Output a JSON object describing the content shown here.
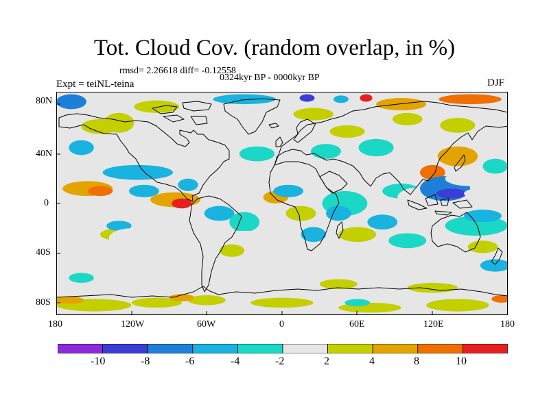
{
  "title": "Tot. Cloud Cov. (random overlap, in %)",
  "stats": "rmsd= 2.26618 diff= -0.12558",
  "period": "0324kyr BP - 0000kyr BP",
  "experiment": "Expt = teiNL-teina",
  "season": "DJF",
  "axes": {
    "lat_labels": [
      "80N",
      "40N",
      "0",
      "40S",
      "80S"
    ],
    "lon_labels": [
      "180",
      "120W",
      "60W",
      "0",
      "60E",
      "120E",
      "180"
    ]
  },
  "colorbar": {
    "colors": [
      "#8b2bdc",
      "#3c3cd6",
      "#1e7fd9",
      "#18b3df",
      "#1ad7c6",
      "#e6e6e6",
      "#c4cf00",
      "#e3a400",
      "#ef6f00",
      "#e62020"
    ],
    "labels": [
      "-10",
      "-8",
      "-6",
      "-4",
      "-2",
      "2",
      "4",
      "8",
      "10"
    ]
  },
  "map": {
    "background": "#e6e6e6",
    "coastline_color": "#000000",
    "anomaly_patches": [
      {
        "lon": -168,
        "lat": 82,
        "rx": 12,
        "ry": 6,
        "level": 2
      },
      {
        "lon": -30,
        "lat": 84,
        "rx": 25,
        "ry": 4,
        "level": 3
      },
      {
        "lon": 20,
        "lat": 85,
        "rx": 6,
        "ry": 3,
        "level": 1
      },
      {
        "lon": 47,
        "lat": 84,
        "rx": 6,
        "ry": 3,
        "level": 3
      },
      {
        "lon": 67,
        "lat": 85,
        "rx": 5,
        "ry": 3,
        "level": 9
      },
      {
        "lon": 95,
        "lat": 80,
        "rx": 20,
        "ry": 5,
        "level": 7
      },
      {
        "lon": 150,
        "lat": 84,
        "rx": 25,
        "ry": 4,
        "level": 8
      },
      {
        "lon": -145,
        "lat": 62,
        "rx": 15,
        "ry": 6,
        "level": 6
      },
      {
        "lon": -130,
        "lat": 65,
        "rx": 12,
        "ry": 8,
        "level": 6
      },
      {
        "lon": -100,
        "lat": 78,
        "rx": 18,
        "ry": 5,
        "level": 6
      },
      {
        "lon": 25,
        "lat": 72,
        "rx": 16,
        "ry": 5,
        "level": 6
      },
      {
        "lon": 52,
        "lat": 58,
        "rx": 14,
        "ry": 5,
        "level": 6
      },
      {
        "lon": 100,
        "lat": 68,
        "rx": 12,
        "ry": 5,
        "level": 6
      },
      {
        "lon": 140,
        "lat": 63,
        "rx": 14,
        "ry": 6,
        "level": 6
      },
      {
        "lon": -160,
        "lat": 45,
        "rx": 10,
        "ry": 6,
        "level": 3
      },
      {
        "lon": -115,
        "lat": 25,
        "rx": 28,
        "ry": 6,
        "level": 3
      },
      {
        "lon": -20,
        "lat": 40,
        "rx": 14,
        "ry": 6,
        "level": 4
      },
      {
        "lon": 35,
        "lat": 42,
        "rx": 12,
        "ry": 6,
        "level": 4
      },
      {
        "lon": 75,
        "lat": 45,
        "rx": 14,
        "ry": 7,
        "level": 4
      },
      {
        "lon": 140,
        "lat": 38,
        "rx": 16,
        "ry": 8,
        "level": 7
      },
      {
        "lon": 120,
        "lat": 25,
        "rx": 10,
        "ry": 6,
        "level": 8
      },
      {
        "lon": 170,
        "lat": 30,
        "rx": 10,
        "ry": 6,
        "level": 4
      },
      {
        "lon": -155,
        "lat": 12,
        "rx": 20,
        "ry": 6,
        "level": 7
      },
      {
        "lon": -145,
        "lat": 10,
        "rx": 10,
        "ry": 4,
        "level": 8
      },
      {
        "lon": -110,
        "lat": 10,
        "rx": 12,
        "ry": 5,
        "level": 3
      },
      {
        "lon": -85,
        "lat": 3,
        "rx": 20,
        "ry": 6,
        "level": 7
      },
      {
        "lon": -80,
        "lat": 0,
        "rx": 8,
        "ry": 4,
        "level": 9
      },
      {
        "lon": -75,
        "lat": 15,
        "rx": 8,
        "ry": 5,
        "level": 3
      },
      {
        "lon": -5,
        "lat": 5,
        "rx": 10,
        "ry": 5,
        "level": 7
      },
      {
        "lon": 5,
        "lat": 10,
        "rx": 12,
        "ry": 5,
        "level": 3
      },
      {
        "lon": 50,
        "lat": 0,
        "rx": 18,
        "ry": 10,
        "level": 4
      },
      {
        "lon": 45,
        "lat": -8,
        "rx": 10,
        "ry": 6,
        "level": 3
      },
      {
        "lon": 95,
        "lat": 10,
        "rx": 15,
        "ry": 6,
        "level": 4
      },
      {
        "lon": 110,
        "lat": 5,
        "rx": 18,
        "ry": 8,
        "level": 5
      },
      {
        "lon": 130,
        "lat": 12,
        "rx": 20,
        "ry": 10,
        "level": 2
      },
      {
        "lon": 135,
        "lat": 8,
        "rx": 12,
        "ry": 4,
        "level": 1
      },
      {
        "lon": 165,
        "lat": 8,
        "rx": 20,
        "ry": 5,
        "level": 5
      },
      {
        "lon": 150,
        "lat": 20,
        "rx": 20,
        "ry": 6,
        "level": 5
      },
      {
        "lon": -130,
        "lat": -25,
        "rx": 15,
        "ry": 5,
        "level": 6
      },
      {
        "lon": -130,
        "lat": -18,
        "rx": 10,
        "ry": 4,
        "level": 3
      },
      {
        "lon": -120,
        "lat": -28,
        "rx": 18,
        "ry": 8,
        "level": 5
      },
      {
        "lon": -50,
        "lat": -8,
        "rx": 12,
        "ry": 6,
        "level": 3
      },
      {
        "lon": -30,
        "lat": -15,
        "rx": 12,
        "ry": 8,
        "level": 4
      },
      {
        "lon": -30,
        "lat": -30,
        "rx": 20,
        "ry": 8,
        "level": 5
      },
      {
        "lon": -40,
        "lat": -38,
        "rx": 10,
        "ry": 5,
        "level": 6
      },
      {
        "lon": 15,
        "lat": -8,
        "rx": 12,
        "ry": 6,
        "level": 6
      },
      {
        "lon": 25,
        "lat": -25,
        "rx": 10,
        "ry": 6,
        "level": 3
      },
      {
        "lon": 60,
        "lat": -25,
        "rx": 15,
        "ry": 6,
        "level": 6
      },
      {
        "lon": 80,
        "lat": -15,
        "rx": 12,
        "ry": 6,
        "level": 3
      },
      {
        "lon": 100,
        "lat": -30,
        "rx": 15,
        "ry": 6,
        "level": 4
      },
      {
        "lon": 155,
        "lat": -18,
        "rx": 25,
        "ry": 8,
        "level": 4
      },
      {
        "lon": 160,
        "lat": -10,
        "rx": 15,
        "ry": 5,
        "level": 3
      },
      {
        "lon": 160,
        "lat": -35,
        "rx": 12,
        "ry": 5,
        "level": 6
      },
      {
        "lon": 170,
        "lat": -50,
        "rx": 12,
        "ry": 5,
        "level": 3
      },
      {
        "lon": -160,
        "lat": -60,
        "rx": 10,
        "ry": 4,
        "level": 4
      },
      {
        "lon": 45,
        "lat": -65,
        "rx": 15,
        "ry": 4,
        "level": 6
      },
      {
        "lon": 120,
        "lat": -68,
        "rx": 20,
        "ry": 4,
        "level": 6
      },
      {
        "lon": -150,
        "lat": -82,
        "rx": 30,
        "ry": 5,
        "level": 6
      },
      {
        "lon": -60,
        "lat": -78,
        "rx": 15,
        "ry": 4,
        "level": 6
      },
      {
        "lon": -170,
        "lat": -78,
        "rx": 12,
        "ry": 3,
        "level": 7
      },
      {
        "lon": -100,
        "lat": -80,
        "rx": 20,
        "ry": 4,
        "level": 6
      },
      {
        "lon": -80,
        "lat": -76,
        "rx": 10,
        "ry": 3,
        "level": 7
      },
      {
        "lon": 0,
        "lat": -80,
        "rx": 25,
        "ry": 4,
        "level": 6
      },
      {
        "lon": 70,
        "lat": -84,
        "rx": 25,
        "ry": 4,
        "level": 6
      },
      {
        "lon": 60,
        "lat": -80,
        "rx": 10,
        "ry": 3,
        "level": 4
      },
      {
        "lon": 140,
        "lat": -82,
        "rx": 25,
        "ry": 5,
        "level": 6
      },
      {
        "lon": 175,
        "lat": -77,
        "rx": 8,
        "ry": 3,
        "level": 8
      }
    ]
  }
}
